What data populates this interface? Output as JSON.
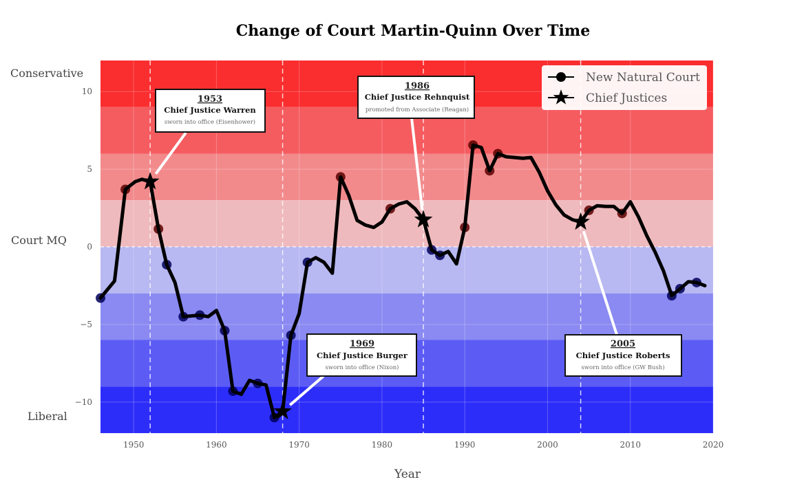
{
  "chart_data": {
    "type": "line",
    "title": "Change of Court Martin-Quinn Over Time",
    "xlabel": "Year",
    "ylabel": "Court MQ",
    "ylabel_top": "Conservative",
    "ylabel_bottom": "Liberal",
    "xlim": [
      1946,
      2020
    ],
    "ylim": [
      -12,
      12
    ],
    "xticks": [
      1950,
      1960,
      1970,
      1980,
      1990,
      2000,
      2010,
      2020
    ],
    "yticks": [
      10,
      5,
      0,
      -5,
      -10
    ],
    "ytick_labels": [
      "10",
      "5",
      "0",
      "−5",
      "−10"
    ],
    "grid": true,
    "legend": {
      "position": "top-right",
      "entries": [
        {
          "label": "New Natural Court",
          "marker": "circle"
        },
        {
          "label": "Chief Justices",
          "marker": "star"
        }
      ]
    },
    "bands": [
      {
        "from": 9,
        "to": 12,
        "color": "#fa2d2f"
      },
      {
        "from": 6,
        "to": 9,
        "color": "#f55c60"
      },
      {
        "from": 3,
        "to": 6,
        "color": "#f28a8c"
      },
      {
        "from": 0,
        "to": 3,
        "color": "#efbabd"
      },
      {
        "from": -3,
        "to": 0,
        "color": "#b8b8f2"
      },
      {
        "from": -6,
        "to": -3,
        "color": "#8a8af2"
      },
      {
        "from": -9,
        "to": -6,
        "color": "#5c5cf5"
      },
      {
        "from": -12,
        "to": -9,
        "color": "#2d2dfa"
      }
    ],
    "series": [
      {
        "name": "Court MQ",
        "x": [
          1946,
          1947.7,
          1949,
          1950.2,
          1951,
          1952,
          1953,
          1954,
          1955,
          1956,
          1957,
          1958,
          1959,
          1960,
          1961,
          1962,
          1963,
          1964,
          1965,
          1966,
          1967,
          1968,
          1969,
          1970,
          1971,
          1972,
          1973,
          1974,
          1975,
          1976,
          1977,
          1978,
          1979,
          1980,
          1981,
          1982,
          1983,
          1984,
          1985,
          1986,
          1987,
          1988,
          1989,
          1990,
          1991,
          1992,
          1993,
          1994,
          1995,
          1996,
          1997,
          1998,
          1999,
          2000,
          2001,
          2002,
          2003,
          2004,
          2005,
          2006,
          2007,
          2008,
          2009,
          2010,
          2011,
          2012,
          2013,
          2014,
          2015,
          2016,
          2017,
          2018,
          2019
        ],
        "y": [
          -3.3,
          -2.2,
          3.7,
          4.2,
          4.35,
          4.2,
          1.15,
          -1.15,
          -2.3,
          -4.5,
          -4.45,
          -4.4,
          -4.5,
          -4.1,
          -5.4,
          -9.3,
          -9.5,
          -8.6,
          -8.8,
          -8.9,
          -11.0,
          -10.6,
          -5.7,
          -4.3,
          -1.0,
          -0.7,
          -1.0,
          -1.7,
          4.5,
          3.3,
          1.7,
          1.4,
          1.25,
          1.6,
          2.45,
          2.75,
          2.9,
          2.45,
          1.75,
          -0.2,
          -0.55,
          -0.3,
          -1.1,
          1.25,
          6.55,
          6.4,
          4.9,
          6.0,
          5.8,
          5.75,
          5.7,
          5.75,
          4.8,
          3.6,
          2.7,
          2.05,
          1.75,
          1.6,
          2.35,
          2.65,
          2.6,
          2.6,
          2.15,
          2.9,
          1.9,
          0.7,
          -0.35,
          -1.55,
          -3.15,
          -2.7,
          -2.25,
          -2.3,
          -2.5
        ]
      },
      {
        "name": "New Natural Court",
        "marker": "circle",
        "x": [
          1946,
          1949,
          1953,
          1954,
          1956,
          1958,
          1961,
          1962,
          1965,
          1967,
          1969,
          1971,
          1975,
          1981,
          1986,
          1987,
          1990,
          1991,
          1993,
          1994,
          2005,
          2009,
          2015,
          2016,
          2018
        ],
        "y": [
          -3.3,
          3.7,
          1.15,
          -1.15,
          -4.5,
          -4.4,
          -5.4,
          -9.3,
          -8.8,
          -11.0,
          -5.7,
          -1.0,
          4.5,
          2.45,
          -0.2,
          -0.55,
          1.25,
          6.55,
          4.9,
          6.0,
          2.35,
          2.15,
          -3.15,
          -2.7,
          -2.3
        ]
      },
      {
        "name": "Chief Justices",
        "marker": "star",
        "x": [
          1952,
          1968,
          1985,
          2004
        ],
        "y": [
          4.2,
          -10.6,
          1.75,
          1.6
        ]
      }
    ],
    "annotations": [
      {
        "year": "1953",
        "title": "Chief Justice Warren",
        "subtitle": "sworn into office (Eisenhower)",
        "x": 1952,
        "y": 4.2
      },
      {
        "year": "1969",
        "title": "Chief Justice Burger",
        "subtitle": "sworn into office (Nixon)",
        "x": 1968,
        "y": -10.6
      },
      {
        "year": "1986",
        "title": "Chief Justice Rehnquist",
        "subtitle": "promoted from Associate (Reagan)",
        "x": 1985,
        "y": 1.75
      },
      {
        "year": "2005",
        "title": "Chief Justice Roberts",
        "subtitle": "sworn into office (GW Bush)",
        "x": 2004,
        "y": 1.6
      }
    ]
  }
}
